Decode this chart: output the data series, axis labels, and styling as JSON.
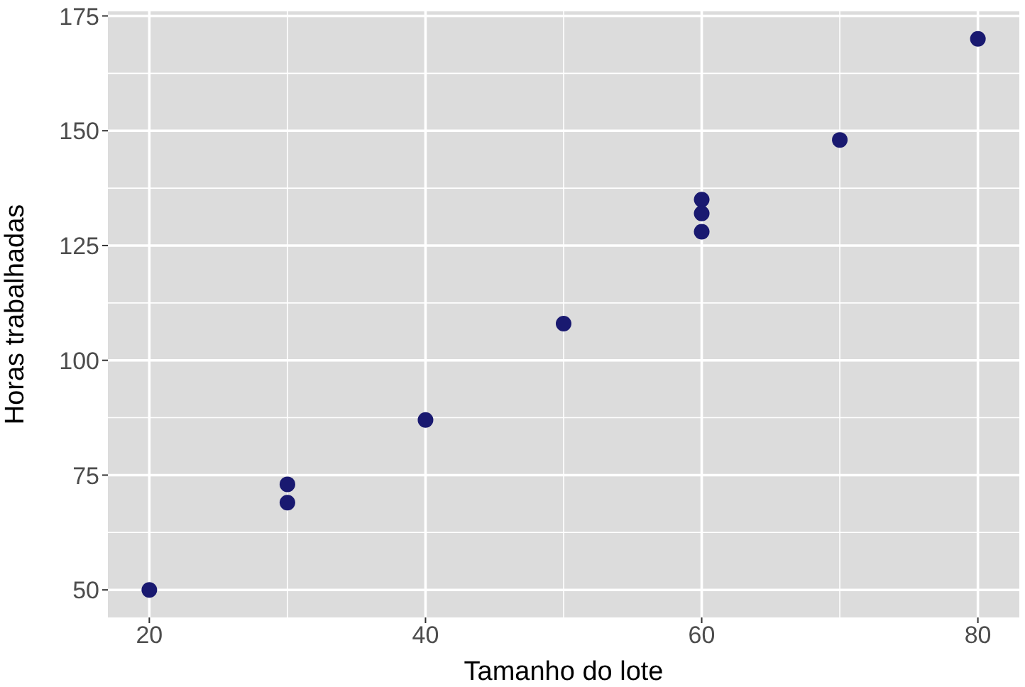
{
  "chart_data": {
    "type": "scatter",
    "xlabel": "Tamanho do lote",
    "ylabel": "Horas trabalhadas",
    "x": [
      20,
      30,
      30,
      40,
      50,
      60,
      60,
      60,
      70,
      80
    ],
    "values": [
      50,
      73,
      69,
      87,
      108,
      135,
      132,
      128,
      148,
      170
    ],
    "color": "#191970",
    "marker": "circle",
    "xlim": [
      17,
      83
    ],
    "xticks": [
      20,
      40,
      60,
      80
    ],
    "ylim": [
      44,
      176
    ],
    "yticks": [
      50,
      75,
      100,
      125,
      150,
      175
    ],
    "grid": true
  }
}
